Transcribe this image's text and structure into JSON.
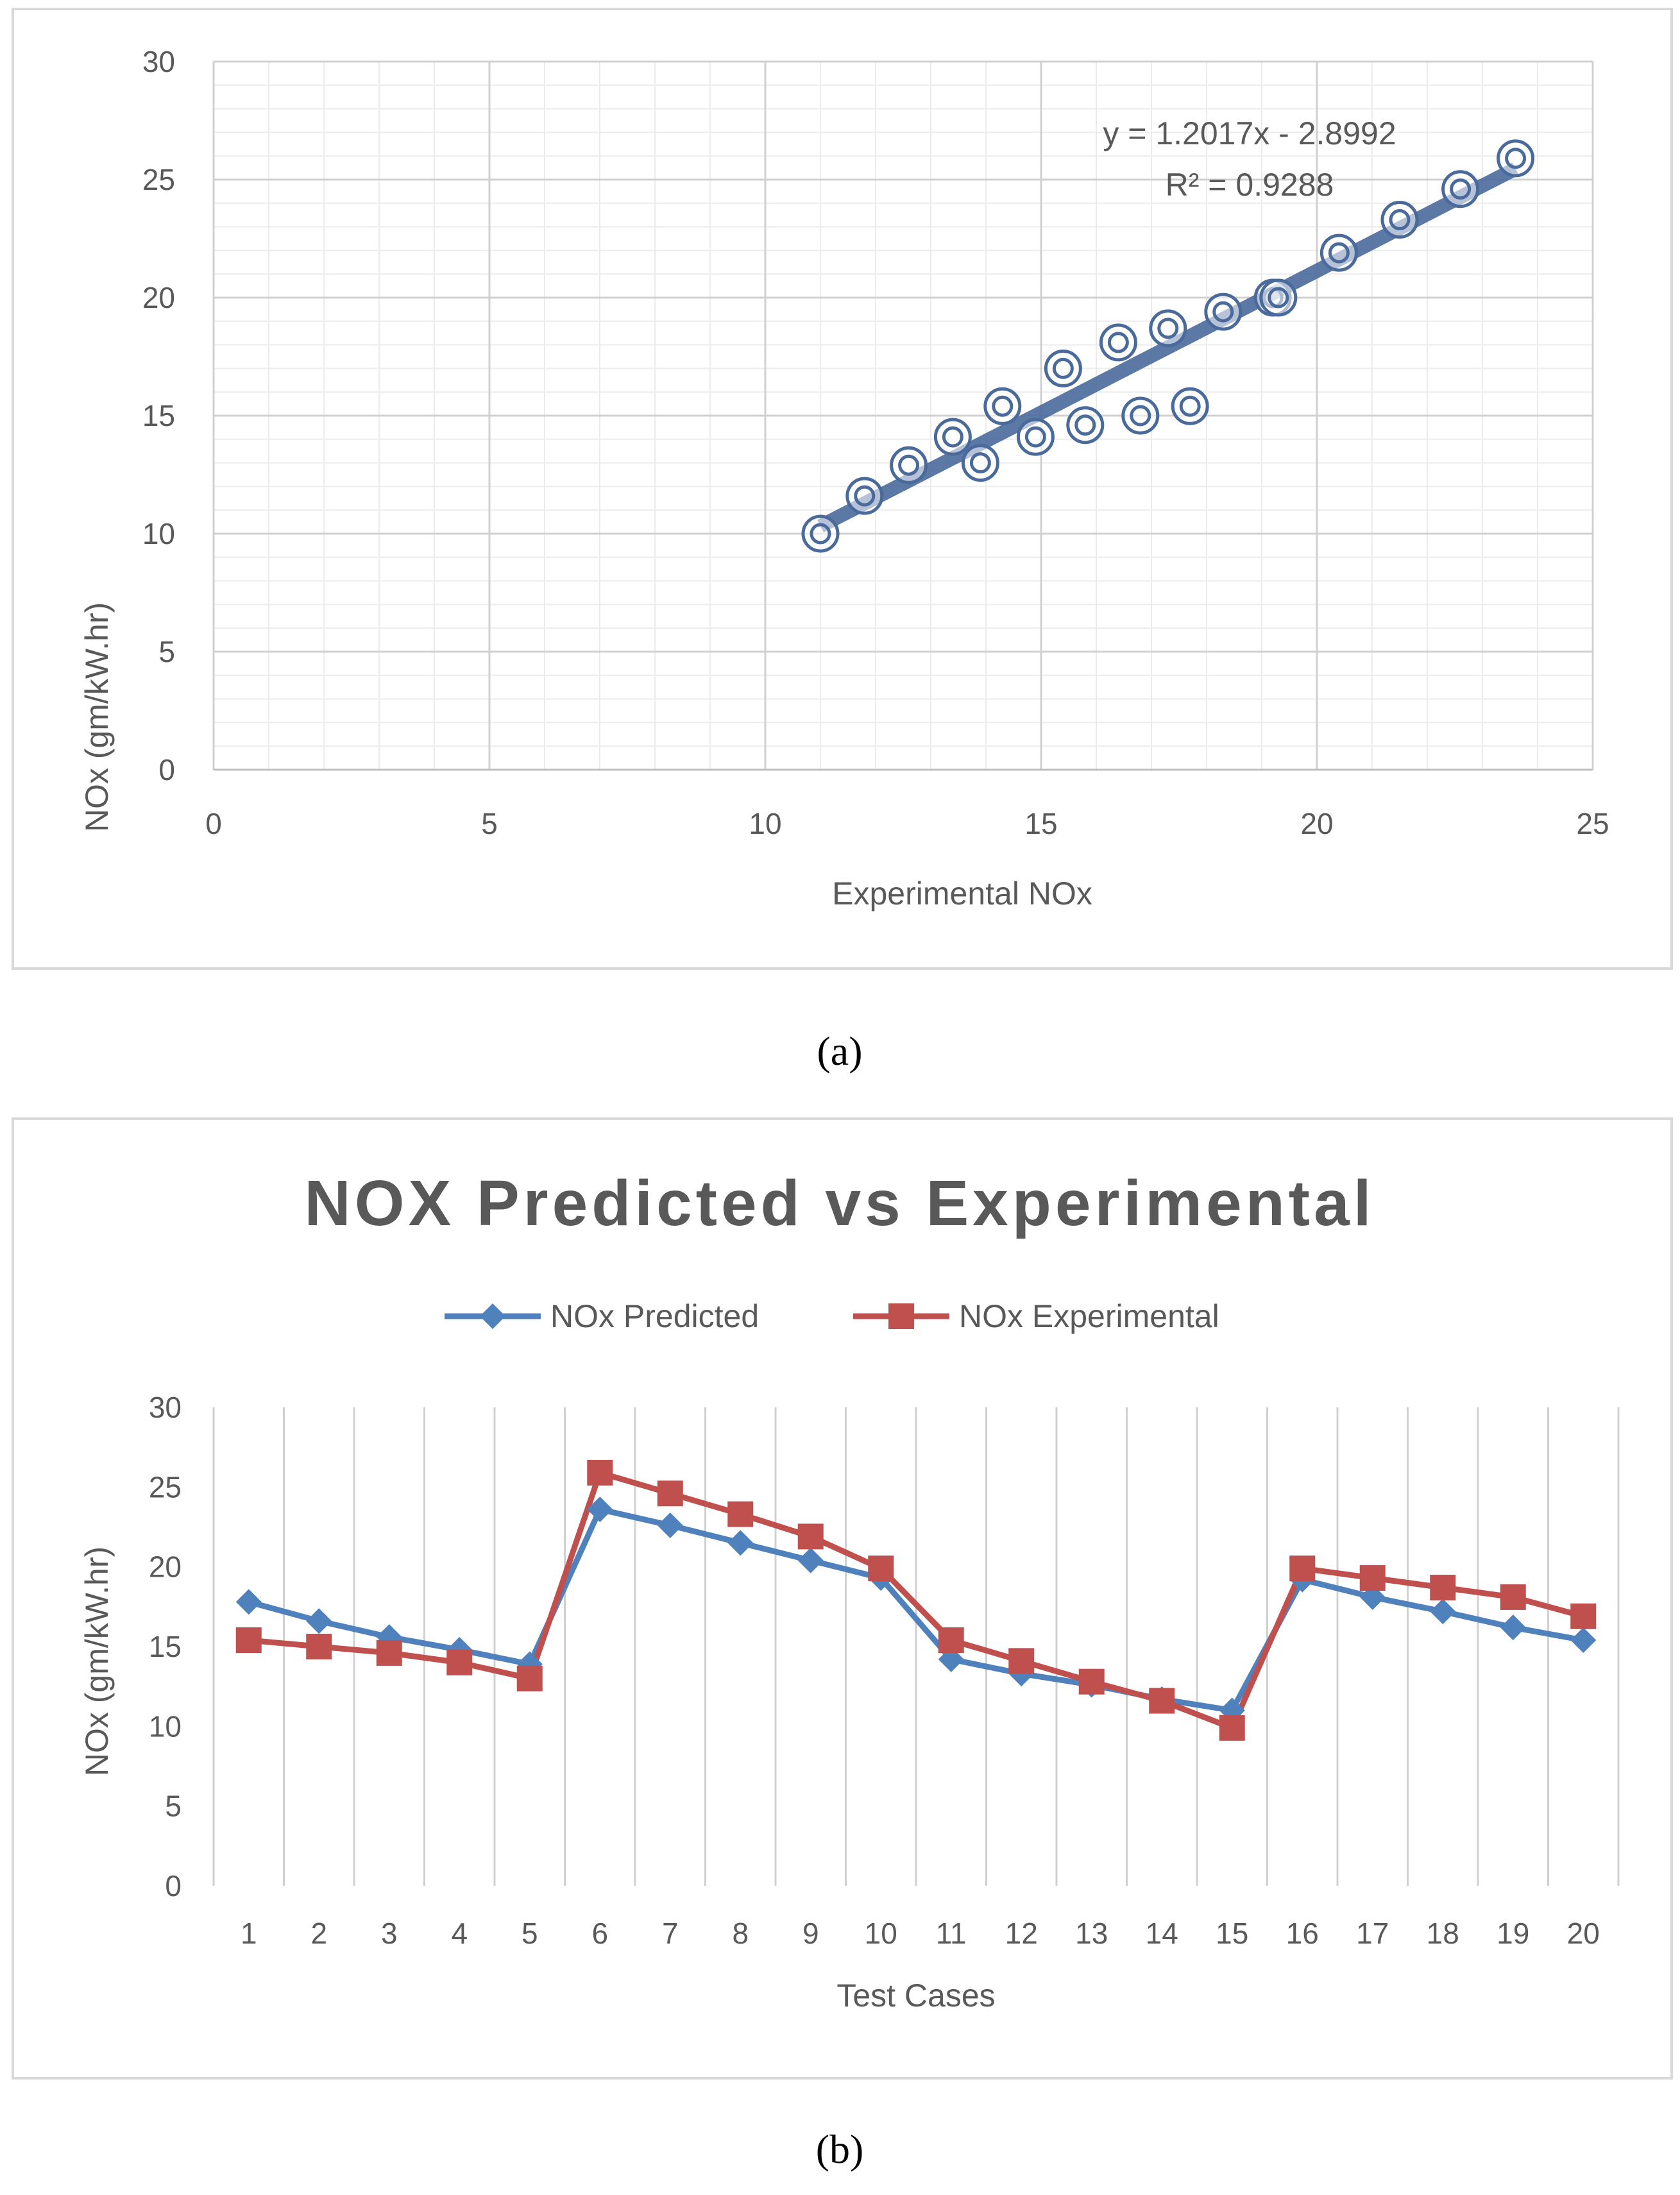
{
  "chart_data": [
    {
      "id": "a",
      "type": "scatter",
      "caption": "(a)",
      "xlabel": "Experimental NOx",
      "ylabel": "NOx (gm/kW.hr)",
      "xlim": [
        0,
        25
      ],
      "ylim": [
        0,
        30
      ],
      "xticks": [
        "0",
        "5",
        "10",
        "15",
        "20",
        "25"
      ],
      "yticks": [
        "0",
        "5",
        "10",
        "15",
        "20",
        "25",
        "30"
      ],
      "grid": true,
      "trendline": {
        "slope": 1.2017,
        "intercept": -2.8992,
        "x_range": [
          11,
          23.6
        ]
      },
      "equation_label": "y = 1.2017x - 2.8992",
      "r2_label": "R² = 0.9288",
      "series": [
        {
          "name": "NOx",
          "color": "#4a6a9c",
          "points": [
            [
              11.0,
              10.0
            ],
            [
              11.8,
              11.6
            ],
            [
              12.6,
              12.9
            ],
            [
              13.4,
              14.1
            ],
            [
              13.9,
              13.0
            ],
            [
              14.3,
              15.4
            ],
            [
              14.9,
              14.1
            ],
            [
              15.4,
              17.0
            ],
            [
              15.8,
              14.6
            ],
            [
              16.4,
              18.1
            ],
            [
              16.8,
              15.0
            ],
            [
              17.3,
              18.7
            ],
            [
              17.7,
              15.4
            ],
            [
              18.3,
              19.4
            ],
            [
              19.2,
              20.0
            ],
            [
              19.3,
              20.0
            ],
            [
              20.4,
              21.9
            ],
            [
              21.5,
              23.3
            ],
            [
              22.6,
              24.6
            ],
            [
              23.6,
              25.9
            ]
          ]
        }
      ]
    },
    {
      "id": "b",
      "type": "line",
      "caption": "(b)",
      "title": "NOX Predicted vs Experimental",
      "xlabel": "Test Cases",
      "ylabel": "NOx (gm/kW.hr)",
      "ylim": [
        0,
        30
      ],
      "yticks": [
        "0",
        "5",
        "10",
        "15",
        "20",
        "25",
        "30"
      ],
      "categories": [
        "1",
        "2",
        "3",
        "4",
        "5",
        "6",
        "7",
        "8",
        "9",
        "10",
        "11",
        "12",
        "13",
        "14",
        "15",
        "16",
        "17",
        "18",
        "19",
        "20"
      ],
      "series": [
        {
          "name": "NOx Predicted",
          "color": "#4f81bd",
          "marker": "diamond",
          "values": [
            17.8,
            16.6,
            15.6,
            14.8,
            13.9,
            23.6,
            22.6,
            21.5,
            20.4,
            19.3,
            14.2,
            13.3,
            12.6,
            11.7,
            11.0,
            19.2,
            18.1,
            17.2,
            16.2,
            15.4
          ]
        },
        {
          "name": "NOx Experimental",
          "color": "#c0504d",
          "marker": "square",
          "values": [
            15.4,
            15.0,
            14.6,
            14.0,
            13.0,
            25.9,
            24.6,
            23.3,
            21.9,
            19.9,
            15.4,
            14.1,
            12.8,
            11.6,
            9.9,
            19.9,
            19.3,
            18.7,
            18.1,
            16.9
          ]
        }
      ]
    }
  ]
}
